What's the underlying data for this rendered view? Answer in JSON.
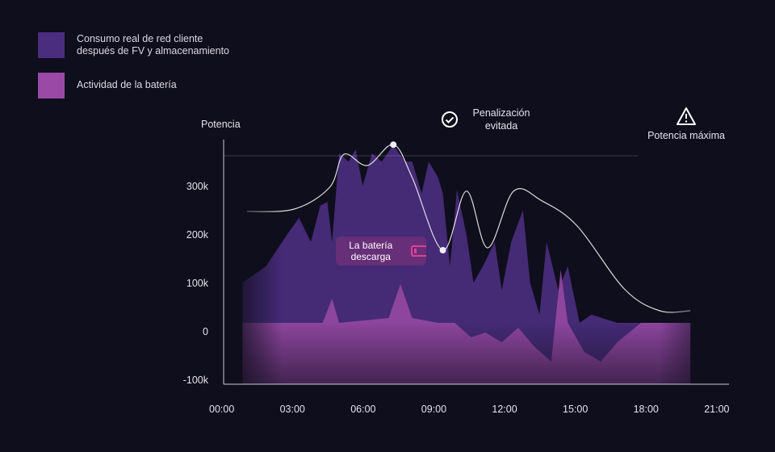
{
  "legend": [
    {
      "label": "Consumo real de red cliente después de FV y almacenamiento",
      "color": "#4b2d80"
    },
    {
      "label": "Actividad de la batería",
      "color": "#9a4aa6"
    }
  ],
  "annotations": {
    "penalty": "Penalización evitada",
    "max_power": "Potencia máxima",
    "battery_discharge": "La batería descarga",
    "icons": {
      "penalty": "check-circle-icon",
      "max_power": "warning-triangle-icon",
      "battery": "battery-low-icon"
    }
  },
  "chart_data": {
    "type": "area",
    "title": "",
    "ylabel": "Potencia",
    "xlabel": "",
    "ylim": [
      -100000,
      390000
    ],
    "xlim": [
      0,
      21
    ],
    "y_ticks": [
      {
        "v": 300000,
        "label": "300k"
      },
      {
        "v": 200000,
        "label": "200k"
      },
      {
        "v": 100000,
        "label": "100k"
      },
      {
        "v": 0,
        "label": "0"
      },
      {
        "v": -100000,
        "label": "-100k"
      }
    ],
    "x_ticks": [
      {
        "v": 0,
        "label": "00:00"
      },
      {
        "v": 3,
        "label": "03:00"
      },
      {
        "v": 6,
        "label": "06:00"
      },
      {
        "v": 9,
        "label": "09:00"
      },
      {
        "v": 12,
        "label": "12:00"
      },
      {
        "v": 15,
        "label": "15:00"
      },
      {
        "v": 18,
        "label": "18:00"
      },
      {
        "v": 21,
        "label": "21:00"
      }
    ],
    "max_power": 385000,
    "series": [
      {
        "name": "Consumo real de red cliente después de FV y almacenamiento",
        "color": "#4b2d80",
        "points": [
          [
            0.8,
            103000
          ],
          [
            1.8,
            137000
          ],
          [
            2.7,
            203000
          ],
          [
            3.2,
            237000
          ],
          [
            3.7,
            187000
          ],
          [
            4.1,
            262000
          ],
          [
            4.4,
            270000
          ],
          [
            4.6,
            187000
          ],
          [
            4.9,
            370000
          ],
          [
            5.3,
            353000
          ],
          [
            5.6,
            378000
          ],
          [
            5.9,
            303000
          ],
          [
            6.3,
            370000
          ],
          [
            6.7,
            353000
          ],
          [
            7.2,
            387000
          ],
          [
            7.7,
            353000
          ],
          [
            8.0,
            353000
          ],
          [
            8.4,
            287000
          ],
          [
            8.7,
            353000
          ],
          [
            9.1,
            320000
          ],
          [
            9.3,
            287000
          ],
          [
            9.6,
            137000
          ],
          [
            9.9,
            295000
          ],
          [
            10.3,
            203000
          ],
          [
            10.6,
            103000
          ],
          [
            11.0,
            137000
          ],
          [
            11.5,
            187000
          ],
          [
            11.8,
            87000
          ],
          [
            12.2,
            187000
          ],
          [
            12.7,
            253000
          ],
          [
            13.0,
            103000
          ],
          [
            13.4,
            37000
          ],
          [
            13.7,
            187000
          ],
          [
            14.2,
            87000
          ],
          [
            14.6,
            137000
          ],
          [
            15.1,
            20000
          ],
          [
            15.6,
            37000
          ],
          [
            16.7,
            20000
          ],
          [
            17.7,
            20000
          ],
          [
            19.8,
            20000
          ]
        ]
      },
      {
        "name": "Actividad de la batería",
        "color": "#9a4aa6",
        "points": [
          [
            0.8,
            20000
          ],
          [
            4.2,
            20000
          ],
          [
            4.6,
            70000
          ],
          [
            4.9,
            20000
          ],
          [
            7.0,
            30000
          ],
          [
            7.5,
            100000
          ],
          [
            8.0,
            30000
          ],
          [
            9.1,
            20000
          ],
          [
            9.8,
            20000
          ],
          [
            10.5,
            -10000
          ],
          [
            11.1,
            0
          ],
          [
            11.8,
            -20000
          ],
          [
            12.5,
            10000
          ],
          [
            13.2,
            -30000
          ],
          [
            13.9,
            -60000
          ],
          [
            14.3,
            130000
          ],
          [
            14.6,
            20000
          ],
          [
            15.3,
            -40000
          ],
          [
            16.0,
            -60000
          ],
          [
            16.7,
            -20000
          ],
          [
            17.7,
            20000
          ],
          [
            19.8,
            20000
          ]
        ]
      },
      {
        "name": "Potencia",
        "color": "#ffffff",
        "line": true,
        "points": [
          [
            1,
            250000
          ],
          [
            3,
            255000
          ],
          [
            4.5,
            300000
          ],
          [
            5.1,
            368000
          ],
          [
            6.1,
            345000
          ],
          [
            7.2,
            388000
          ],
          [
            8.0,
            320000
          ],
          [
            9.3,
            170000
          ],
          [
            10.3,
            292000
          ],
          [
            11.2,
            175000
          ],
          [
            12.3,
            292000
          ],
          [
            13.5,
            272000
          ],
          [
            15,
            220000
          ],
          [
            17,
            90000
          ],
          [
            18.5,
            45000
          ],
          [
            19.8,
            45000
          ]
        ],
        "markers": [
          [
            7.2,
            388000
          ],
          [
            9.3,
            170000
          ]
        ]
      }
    ]
  }
}
